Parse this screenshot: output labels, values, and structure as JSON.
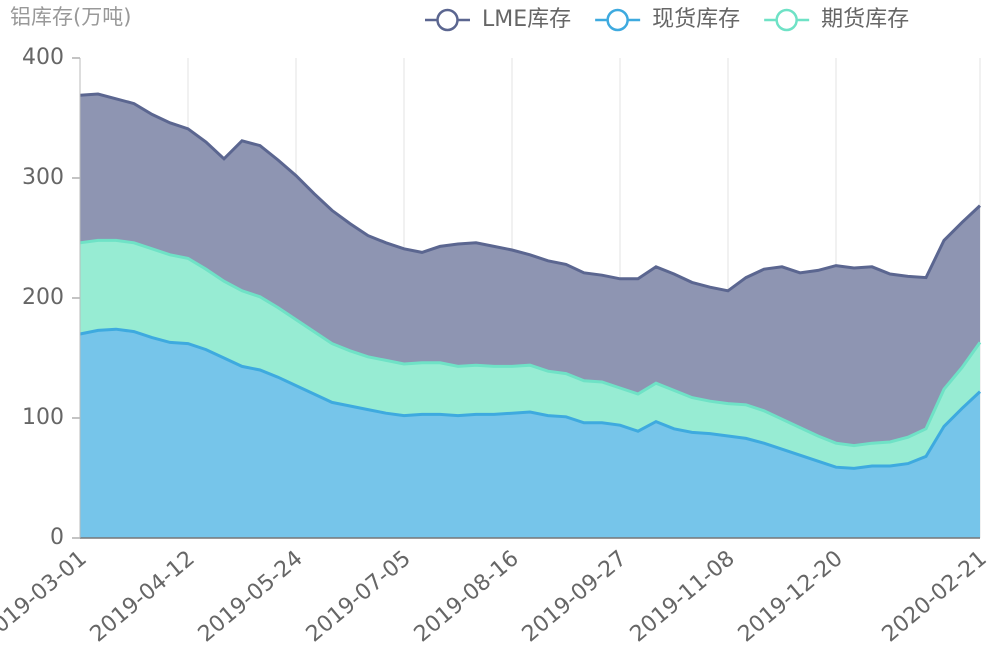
{
  "chart_data": {
    "type": "area",
    "stacked": true,
    "y_axis_label": "铝库存(万吨)",
    "categories": [
      "2019-03-01",
      null,
      null,
      null,
      null,
      null,
      "2019-04-12",
      null,
      null,
      null,
      null,
      null,
      "2019-05-24",
      null,
      null,
      null,
      null,
      null,
      "2019-07-05",
      null,
      null,
      null,
      null,
      null,
      "2019-08-16",
      null,
      null,
      null,
      null,
      null,
      "2019-09-27",
      null,
      null,
      null,
      null,
      null,
      "2019-11-08",
      null,
      null,
      null,
      null,
      null,
      "2019-12-20",
      null,
      null,
      null,
      null,
      null,
      null,
      null,
      "2020-02-21"
    ],
    "series": [
      {
        "name": "LME库存",
        "color": "#5b6690",
        "fill": "#8e95b2",
        "values": [
          123,
          122,
          118,
          116,
          112,
          110,
          108,
          106,
          102,
          125,
          126,
          123,
          120,
          115,
          111,
          106,
          101,
          98,
          96,
          92,
          97,
          102,
          102,
          100,
          97,
          92,
          92,
          91,
          90,
          89,
          91,
          96,
          97,
          97,
          96,
          95,
          94,
          106,
          118,
          127,
          129,
          138,
          148,
          148,
          147,
          140,
          134,
          126,
          124,
          121,
          114
        ]
      },
      {
        "name": "现货库存",
        "color": "#3eaadf",
        "fill": "#76c5ea",
        "values": [
          170,
          173,
          174,
          172,
          167,
          163,
          162,
          157,
          150,
          143,
          140,
          134,
          127,
          120,
          113,
          110,
          107,
          104,
          102,
          103,
          103,
          102,
          103,
          103,
          104,
          105,
          102,
          101,
          96,
          96,
          94,
          89,
          97,
          91,
          88,
          87,
          85,
          83,
          79,
          74,
          69,
          64,
          59,
          58,
          60,
          60,
          62,
          68,
          93,
          108,
          122
        ]
      },
      {
        "name": "期货库存",
        "color": "#6fe2c6",
        "fill": "#97ecd3",
        "values": [
          76,
          75,
          74,
          74,
          74,
          73,
          71,
          67,
          64,
          63,
          61,
          58,
          55,
          52,
          49,
          46,
          44,
          44,
          43,
          43,
          43,
          41,
          41,
          40,
          39,
          39,
          37,
          36,
          35,
          34,
          31,
          31,
          32,
          32,
          29,
          27,
          27,
          28,
          27,
          25,
          23,
          21,
          20,
          19,
          19,
          20,
          22,
          23,
          31,
          34,
          41
        ]
      }
    ],
    "ylim": [
      0,
      400
    ],
    "yticks": [
      0,
      100,
      200,
      300,
      400
    ],
    "xgrid": true,
    "legend": "top"
  }
}
